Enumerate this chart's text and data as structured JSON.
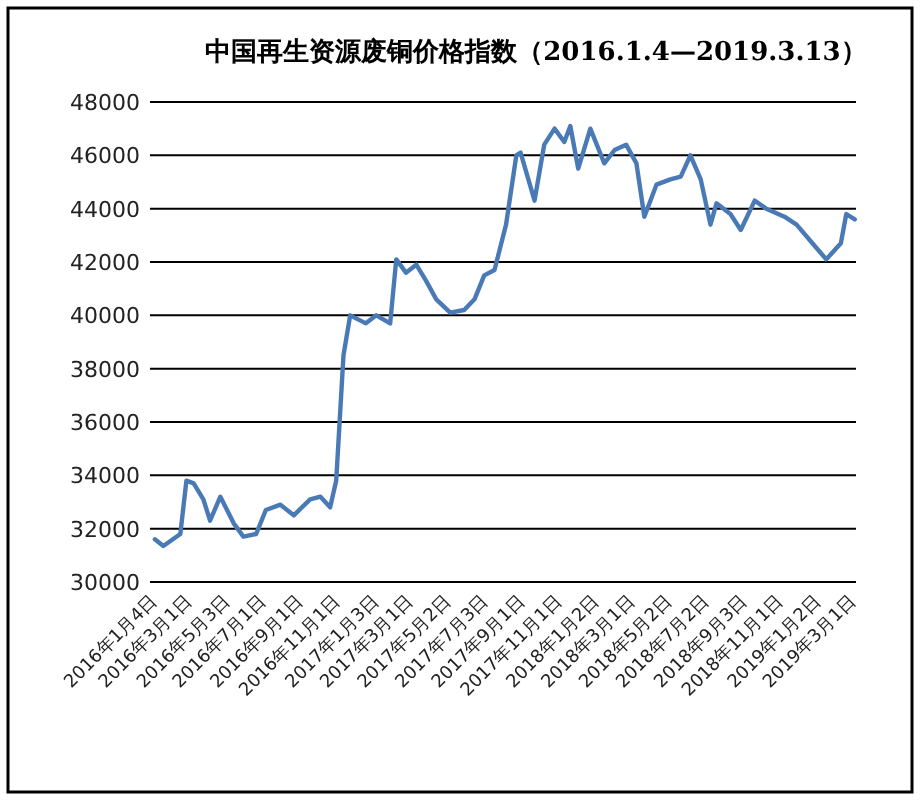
{
  "chart_data": {
    "type": "line",
    "title": "中国再生资源废铜价格指数（2016.1.4—2019.3.13）",
    "x": [
      "2016-01-12",
      "2016-01-26",
      "2016-02-23",
      "2016-03-04",
      "2016-03-16",
      "2016-04-01",
      "2016-04-12",
      "2016-04-29",
      "2016-05-21",
      "2016-06-06",
      "2016-06-27",
      "2016-07-13",
      "2016-08-06",
      "2016-08-28",
      "2016-09-24",
      "2016-10-11",
      "2016-10-27",
      "2016-11-06",
      "2016-11-18",
      "2016-11-29",
      "2016-12-25",
      "2017-01-11",
      "2017-02-03",
      "2017-02-13",
      "2017-03-01",
      "2017-03-18",
      "2017-04-03",
      "2017-04-20",
      "2017-05-13",
      "2017-06-05",
      "2017-06-22",
      "2017-07-08",
      "2017-07-25",
      "2017-08-13",
      "2017-08-30",
      "2017-09-06",
      "2017-09-29",
      "2017-10-15",
      "2017-11-01",
      "2017-11-17",
      "2017-11-27",
      "2017-12-10",
      "2017-12-30",
      "2018-01-22",
      "2018-02-08",
      "2018-02-27",
      "2018-03-16",
      "2018-03-29",
      "2018-04-18",
      "2018-05-11",
      "2018-05-28",
      "2018-06-13",
      "2018-06-30",
      "2018-07-16",
      "2018-07-26",
      "2018-08-18",
      "2018-09-04",
      "2018-09-27",
      "2018-10-16",
      "2018-11-15",
      "2018-12-05",
      "2019-01-04",
      "2019-01-23",
      "2019-02-16",
      "2019-02-25",
      "2019-03-11"
    ],
    "values": [
      31600,
      31350,
      31800,
      33800,
      33700,
      33100,
      32300,
      33200,
      32200,
      31700,
      31800,
      32700,
      32900,
      32500,
      33100,
      33200,
      32800,
      33800,
      38500,
      40000,
      39700,
      40000,
      39700,
      42100,
      41600,
      41900,
      41300,
      40600,
      40100,
      40200,
      40600,
      41500,
      41700,
      43400,
      46000,
      46100,
      44300,
      46400,
      47000,
      46500,
      47100,
      45500,
      47000,
      45700,
      46200,
      46400,
      45700,
      43700,
      44900,
      45100,
      45200,
      46000,
      45100,
      43400,
      44200,
      43800,
      43200,
      44300,
      44000,
      43700,
      43400,
      42600,
      42100,
      42700,
      43800,
      43600
    ],
    "color": "#4a7ab5",
    "xlim": [
      "2016-01-04",
      "2019-03-13"
    ],
    "xticks": [
      {
        "value": "2016-01-04",
        "label": "2016年1月4日"
      },
      {
        "value": "2016-03-01",
        "label": "2016年3月1日"
      },
      {
        "value": "2016-05-03",
        "label": "2016年5月3日"
      },
      {
        "value": "2016-07-01",
        "label": "2016年7月1日"
      },
      {
        "value": "2016-09-01",
        "label": "2016年9月1日"
      },
      {
        "value": "2016-11-01",
        "label": "2016年11月1日"
      },
      {
        "value": "2017-01-03",
        "label": "2017年1月3日"
      },
      {
        "value": "2017-03-01",
        "label": "2017年3月1日"
      },
      {
        "value": "2017-05-02",
        "label": "2017年5月2日"
      },
      {
        "value": "2017-07-03",
        "label": "2017年7月3日"
      },
      {
        "value": "2017-09-01",
        "label": "2017年9月1日"
      },
      {
        "value": "2017-11-01",
        "label": "2017年11月1日"
      },
      {
        "value": "2018-01-02",
        "label": "2018年1月2日"
      },
      {
        "value": "2018-03-01",
        "label": "2018年3月1日"
      },
      {
        "value": "2018-05-02",
        "label": "2018年5月2日"
      },
      {
        "value": "2018-07-02",
        "label": "2018年7月2日"
      },
      {
        "value": "2018-09-03",
        "label": "2018年9月3日"
      },
      {
        "value": "2018-11-01",
        "label": "2018年11月1日"
      },
      {
        "value": "2019-01-02",
        "label": "2019年1月2日"
      },
      {
        "value": "2019-03-01",
        "label": "2019年3月1日"
      }
    ],
    "ylim": [
      30000,
      48000
    ],
    "yticks": [
      30000,
      32000,
      34000,
      36000,
      38000,
      40000,
      42000,
      44000,
      46000,
      48000
    ],
    "grid": "y"
  }
}
